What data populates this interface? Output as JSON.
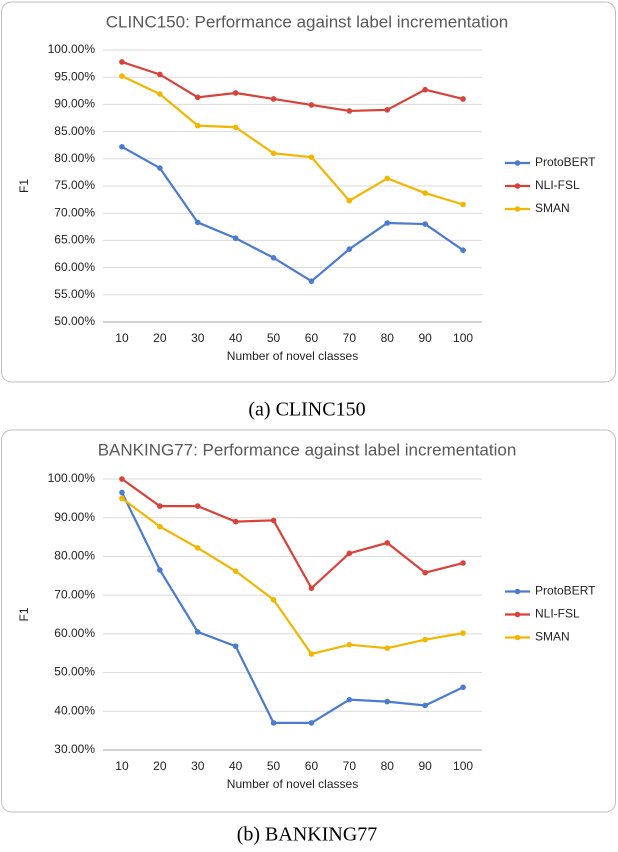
{
  "chart_data": [
    {
      "type": "line",
      "title": "CLINC150: Performance against label incrementation",
      "caption": "(a) CLINC150",
      "x_label": "Number of novel classes",
      "y_label": "F1",
      "categories": [
        10,
        20,
        30,
        40,
        50,
        60,
        70,
        80,
        90,
        100
      ],
      "series": [
        {
          "name": "ProtoBERT",
          "color": "#4a7bd0",
          "values": [
            82.2,
            78.3,
            68.3,
            65.4,
            61.8,
            57.5,
            63.4,
            68.2,
            68.0,
            63.2
          ]
        },
        {
          "name": "NLI-FSL",
          "color": "#d9423a",
          "values": [
            97.8,
            95.5,
            91.3,
            92.1,
            91.0,
            89.9,
            88.8,
            89.0,
            92.7,
            91.0
          ]
        },
        {
          "name": "SMAN",
          "color": "#f2b600",
          "values": [
            95.2,
            91.9,
            86.1,
            85.8,
            81.0,
            80.3,
            72.3,
            76.4,
            73.7,
            71.6
          ]
        }
      ],
      "ylim": [
        50,
        100
      ],
      "yticks": [
        {
          "value": 50,
          "label": "50.00%"
        },
        {
          "value": 55,
          "label": "55.00%"
        },
        {
          "value": 60,
          "label": "60.00%"
        },
        {
          "value": 65,
          "label": "65.00%"
        },
        {
          "value": 70,
          "label": "70.00%"
        },
        {
          "value": 75,
          "label": "75.00%"
        },
        {
          "value": 80,
          "label": "80.00%"
        },
        {
          "value": 85,
          "label": "85.00%"
        },
        {
          "value": 90,
          "label": "90.00%"
        },
        {
          "value": 95,
          "label": "95.00%"
        },
        {
          "value": 100,
          "label": "100.00%"
        }
      ],
      "grid": true,
      "legend": "right"
    },
    {
      "type": "line",
      "title": "BANKING77: Performance against label incrementation",
      "caption": "(b) BANKING77",
      "x_label": "Number of novel classes",
      "y_label": "F1",
      "categories": [
        10,
        20,
        30,
        40,
        50,
        60,
        70,
        80,
        90,
        100
      ],
      "series": [
        {
          "name": "ProtoBERT",
          "color": "#4a7bd0",
          "values": [
            96.5,
            76.5,
            60.5,
            56.8,
            37.0,
            37.0,
            43.0,
            42.5,
            41.5,
            46.2
          ]
        },
        {
          "name": "NLI-FSL",
          "color": "#d9423a",
          "values": [
            100.0,
            93.0,
            93.0,
            89.0,
            89.3,
            71.8,
            80.8,
            83.5,
            75.8,
            78.3
          ]
        },
        {
          "name": "SMAN",
          "color": "#f2b600",
          "values": [
            95.0,
            87.7,
            82.2,
            76.2,
            68.8,
            54.8,
            57.2,
            56.3,
            58.5,
            60.2
          ]
        }
      ],
      "ylim": [
        30,
        100
      ],
      "yticks": [
        {
          "value": 30,
          "label": "30.00%"
        },
        {
          "value": 40,
          "label": "40.00%"
        },
        {
          "value": 50,
          "label": "50.00%"
        },
        {
          "value": 60,
          "label": "60.00%"
        },
        {
          "value": 70,
          "label": "70.00%"
        },
        {
          "value": 80,
          "label": "80.00%"
        },
        {
          "value": 90,
          "label": "90.00%"
        },
        {
          "value": 100,
          "label": "100.00%"
        }
      ],
      "grid": true,
      "legend": "right"
    }
  ]
}
